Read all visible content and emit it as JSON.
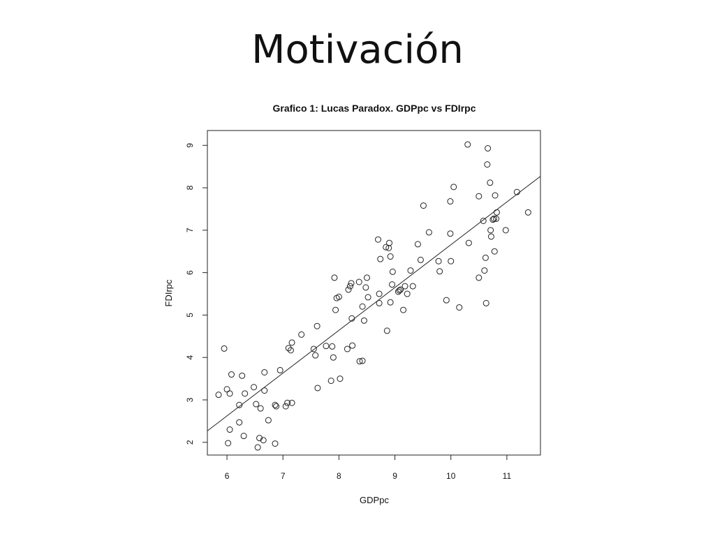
{
  "slide": {
    "title": "Motivación"
  },
  "chart_data": {
    "type": "scatter",
    "title": "Grafico 1: Lucas Paradox. GDPpc vs FDIrpc",
    "xlabel": "GDPpc",
    "ylabel": "FDIrpc",
    "xlim": [
      5.65,
      11.6
    ],
    "ylim": [
      1.7,
      9.35
    ],
    "xticks": [
      6,
      7,
      8,
      9,
      10,
      11
    ],
    "yticks": [
      2,
      3,
      4,
      5,
      6,
      7,
      8,
      9
    ],
    "grid": false,
    "trend_line": {
      "x": [
        5.65,
        11.6
      ],
      "y": [
        2.27,
        8.27
      ]
    },
    "points": [
      [
        5.85,
        3.12
      ],
      [
        5.95,
        4.21
      ],
      [
        6.0,
        3.25
      ],
      [
        6.05,
        3.15
      ],
      [
        6.08,
        3.6
      ],
      [
        6.02,
        1.98
      ],
      [
        6.05,
        2.3
      ],
      [
        6.22,
        2.88
      ],
      [
        6.27,
        3.57
      ],
      [
        6.32,
        3.15
      ],
      [
        6.22,
        2.47
      ],
      [
        6.3,
        2.15
      ],
      [
        6.48,
        3.3
      ],
      [
        6.52,
        2.9
      ],
      [
        6.58,
        2.1
      ],
      [
        6.6,
        2.8
      ],
      [
        6.55,
        1.88
      ],
      [
        6.65,
        2.05
      ],
      [
        6.67,
        3.65
      ],
      [
        6.67,
        3.22
      ],
      [
        6.74,
        2.52
      ],
      [
        6.86,
        2.88
      ],
      [
        6.88,
        2.85
      ],
      [
        6.86,
        1.97
      ],
      [
        6.95,
        3.7
      ],
      [
        7.05,
        2.85
      ],
      [
        7.08,
        2.93
      ],
      [
        7.1,
        4.22
      ],
      [
        7.14,
        4.17
      ],
      [
        7.16,
        4.35
      ],
      [
        7.16,
        2.93
      ],
      [
        7.33,
        4.54
      ],
      [
        7.55,
        4.2
      ],
      [
        7.58,
        4.05
      ],
      [
        7.61,
        4.74
      ],
      [
        7.62,
        3.28
      ],
      [
        7.77,
        4.27
      ],
      [
        7.86,
        3.45
      ],
      [
        7.88,
        4.26
      ],
      [
        7.9,
        4.0
      ],
      [
        7.92,
        5.88
      ],
      [
        7.94,
        5.12
      ],
      [
        7.96,
        5.4
      ],
      [
        8.0,
        5.43
      ],
      [
        8.02,
        3.5
      ],
      [
        8.15,
        4.2
      ],
      [
        8.17,
        5.6
      ],
      [
        8.2,
        5.68
      ],
      [
        8.22,
        5.75
      ],
      [
        8.23,
        4.92
      ],
      [
        8.24,
        4.28
      ],
      [
        8.36,
        5.78
      ],
      [
        8.37,
        3.91
      ],
      [
        8.42,
        3.92
      ],
      [
        8.42,
        5.2
      ],
      [
        8.45,
        4.87
      ],
      [
        8.48,
        5.65
      ],
      [
        8.5,
        5.88
      ],
      [
        8.52,
        5.42
      ],
      [
        8.7,
        6.78
      ],
      [
        8.72,
        5.5
      ],
      [
        8.72,
        5.28
      ],
      [
        8.74,
        6.32
      ],
      [
        8.84,
        6.6
      ],
      [
        8.86,
        4.63
      ],
      [
        8.89,
        6.58
      ],
      [
        8.9,
        6.7
      ],
      [
        8.92,
        5.3
      ],
      [
        8.92,
        6.38
      ],
      [
        8.95,
        5.72
      ],
      [
        8.96,
        6.02
      ],
      [
        9.06,
        5.55
      ],
      [
        9.08,
        5.58
      ],
      [
        9.1,
        5.6
      ],
      [
        9.15,
        5.12
      ],
      [
        9.18,
        5.68
      ],
      [
        9.22,
        5.5
      ],
      [
        9.28,
        6.05
      ],
      [
        9.32,
        5.68
      ],
      [
        9.41,
        6.67
      ],
      [
        9.46,
        6.3
      ],
      [
        9.51,
        7.58
      ],
      [
        9.61,
        6.95
      ],
      [
        9.78,
        6.27
      ],
      [
        9.8,
        6.03
      ],
      [
        9.92,
        5.35
      ],
      [
        9.99,
        6.92
      ],
      [
        9.99,
        7.68
      ],
      [
        10.0,
        6.27
      ],
      [
        10.05,
        8.02
      ],
      [
        10.15,
        5.18
      ],
      [
        10.3,
        9.02
      ],
      [
        10.32,
        6.7
      ],
      [
        10.5,
        7.8
      ],
      [
        10.5,
        5.88
      ],
      [
        10.58,
        7.22
      ],
      [
        10.6,
        6.05
      ],
      [
        10.62,
        6.35
      ],
      [
        10.63,
        5.28
      ],
      [
        10.65,
        8.55
      ],
      [
        10.66,
        8.93
      ],
      [
        10.7,
        8.12
      ],
      [
        10.71,
        7.0
      ],
      [
        10.72,
        6.85
      ],
      [
        10.75,
        7.25
      ],
      [
        10.77,
        7.27
      ],
      [
        10.78,
        6.5
      ],
      [
        10.79,
        7.82
      ],
      [
        10.82,
        7.42
      ],
      [
        10.81,
        7.27
      ],
      [
        10.98,
        7.0
      ],
      [
        11.18,
        7.9
      ],
      [
        11.38,
        7.42
      ]
    ]
  }
}
